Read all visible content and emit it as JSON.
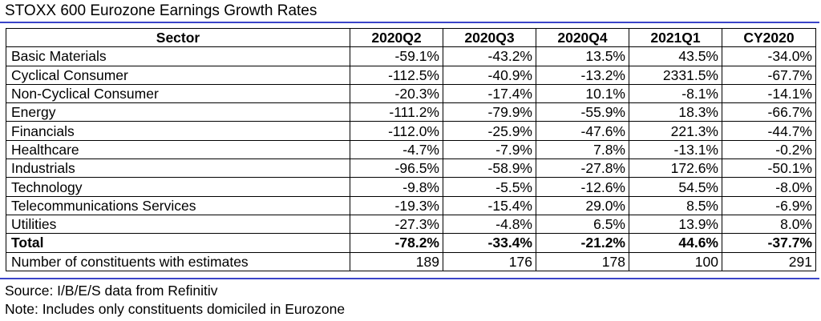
{
  "title": "STOXX 600 Eurozone Earnings Growth Rates",
  "table": {
    "headers": [
      "Sector",
      "2020Q2",
      "2020Q3",
      "2020Q4",
      "2021Q1",
      "CY2020"
    ],
    "rows": [
      {
        "sector": "Basic Materials",
        "values": [
          "-59.1%",
          "-43.2%",
          "13.5%",
          "43.5%",
          "-34.0%"
        ]
      },
      {
        "sector": "Cyclical Consumer",
        "values": [
          "-112.5%",
          "-40.9%",
          "-13.2%",
          "2331.5%",
          "-67.7%"
        ]
      },
      {
        "sector": "Non-Cyclical Consumer",
        "values": [
          "-20.3%",
          "-17.4%",
          "10.1%",
          "-8.1%",
          "-14.1%"
        ]
      },
      {
        "sector": "Energy",
        "values": [
          "-111.2%",
          "-79.9%",
          "-55.9%",
          "18.3%",
          "-66.7%"
        ]
      },
      {
        "sector": "Financials",
        "values": [
          "-112.0%",
          "-25.9%",
          "-47.6%",
          "221.3%",
          "-44.7%"
        ]
      },
      {
        "sector": "Healthcare",
        "values": [
          "-4.7%",
          "-7.9%",
          "7.8%",
          "-13.1%",
          "-0.2%"
        ]
      },
      {
        "sector": "Industrials",
        "values": [
          "-96.5%",
          "-58.9%",
          "-27.8%",
          "172.6%",
          "-50.1%"
        ]
      },
      {
        "sector": "Technology",
        "values": [
          "-9.8%",
          "-5.5%",
          "-12.6%",
          "54.5%",
          "-8.0%"
        ]
      },
      {
        "sector": "Telecommunications Services",
        "values": [
          "-19.3%",
          "-15.4%",
          "29.0%",
          "8.5%",
          "-6.9%"
        ]
      },
      {
        "sector": "Utilities",
        "values": [
          "-27.3%",
          "-4.8%",
          "6.5%",
          "13.9%",
          "8.0%"
        ]
      }
    ],
    "total": {
      "sector": "Total",
      "values": [
        "-78.2%",
        "-33.4%",
        "-21.2%",
        "44.6%",
        "-37.7%"
      ]
    },
    "constituents": {
      "sector": "Number of constituents with estimates",
      "values": [
        "189",
        "176",
        "178",
        "100",
        "291"
      ]
    }
  },
  "source_note": "Source: I/B/E/S data from Refinitiv",
  "footnote": "Note: Includes only constituents domiciled in Eurozone",
  "colors": {
    "rule": "#3a44c8"
  }
}
